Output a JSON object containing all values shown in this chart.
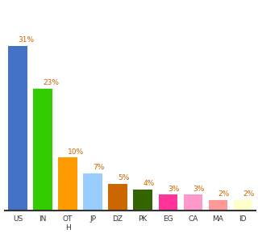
{
  "categories": [
    "US",
    "IN",
    "OT\nH",
    "JP",
    "DZ",
    "PK",
    "EG",
    "CA",
    "MA",
    "ID"
  ],
  "values": [
    31,
    23,
    10,
    7,
    5,
    4,
    3,
    3,
    2,
    2
  ],
  "bar_colors": [
    "#4472c4",
    "#33cc00",
    "#ff9900",
    "#99ccff",
    "#cc6600",
    "#336600",
    "#ff3399",
    "#ff99cc",
    "#ff9999",
    "#ffffcc"
  ],
  "label_texts": [
    "31%",
    "23%",
    "10%",
    "7%",
    "5%",
    "4%",
    "3%",
    "3%",
    "2%",
    "2%"
  ],
  "ylim": [
    0,
    36
  ],
  "background_color": "#ffffff",
  "label_color": "#cc6600",
  "label_fontsize": 6.5,
  "tick_fontsize": 6.5
}
